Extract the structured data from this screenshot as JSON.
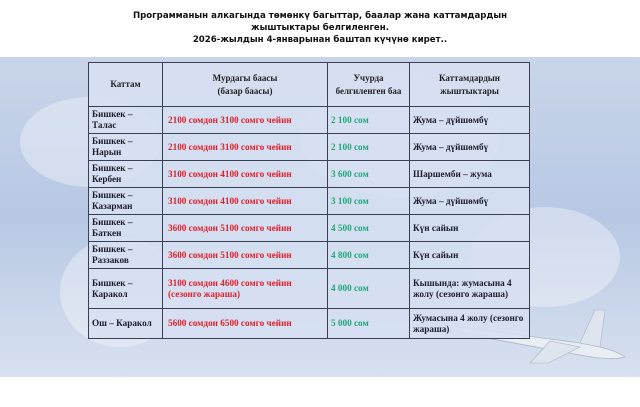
{
  "heading": [
    "Программанын алкагында төмөнкү багыттар,  баалар жана каттамдардын",
    "жыштыктары белгиленген.",
    "2026-жылдын 4-январынан баштап күчүнө кирет.."
  ],
  "table": {
    "headers": [
      "Каттам",
      "Мурдагы баасы\n(базар баасы)",
      "Учурда белгиленген баа",
      "Каттамдардын жыштыктары"
    ],
    "rows": [
      {
        "route": "Бишкек – Талас",
        "old": "2100 сомдон 3100 сомго чейин",
        "new": "2 100 сом",
        "days": "Жума – дүйшөмбү"
      },
      {
        "route": "Бишкек – Нарын",
        "old": "2100 сомдон 3100 сомго чейин",
        "new": "2 100 сом",
        "days": "Жума – дүйшөмбү"
      },
      {
        "route": "Бишкек – Кербен",
        "old": "3100 сомдон 4100 сомго чейин",
        "new": "3 600 сом",
        "days": "Шаршемби – жума"
      },
      {
        "route": "Бишкек – Казарман",
        "old": "3100 сомдон 4100 сомго чейин",
        "new": "3 100 сом",
        "days": "Жума – дүйшөмбү"
      },
      {
        "route": "Бишкек – Баткен",
        "old": "3600 сомдон 5100 сомго чейин",
        "new": "4 500 сом",
        "days": "Күн сайын"
      },
      {
        "route": "Бишкек – Раззаков",
        "old": "3600 сомдон 5100 сомго чейин",
        "new": "4 800 сом",
        "days": "Күн сайын"
      },
      {
        "route": "Бишкек – Каракол",
        "old": "3100 сомдон 4600 сомго чейин (сезонго жараша)",
        "new": "4 000 сом",
        "days": "Кышында: жумасына 4 жолу (сезонго жараша)"
      },
      {
        "route": "Ош – Каракол",
        "old": "5600 сомдон 6500 сомго чейин",
        "new": "5 000 сом",
        "days": "Жумасына 4 жолу (сезонго жараша)"
      }
    ]
  },
  "colors": {
    "old_price": "#e0202a",
    "new_price": "#1fa87a"
  },
  "icons": [
    "airplane-icon",
    "world-map-background"
  ]
}
